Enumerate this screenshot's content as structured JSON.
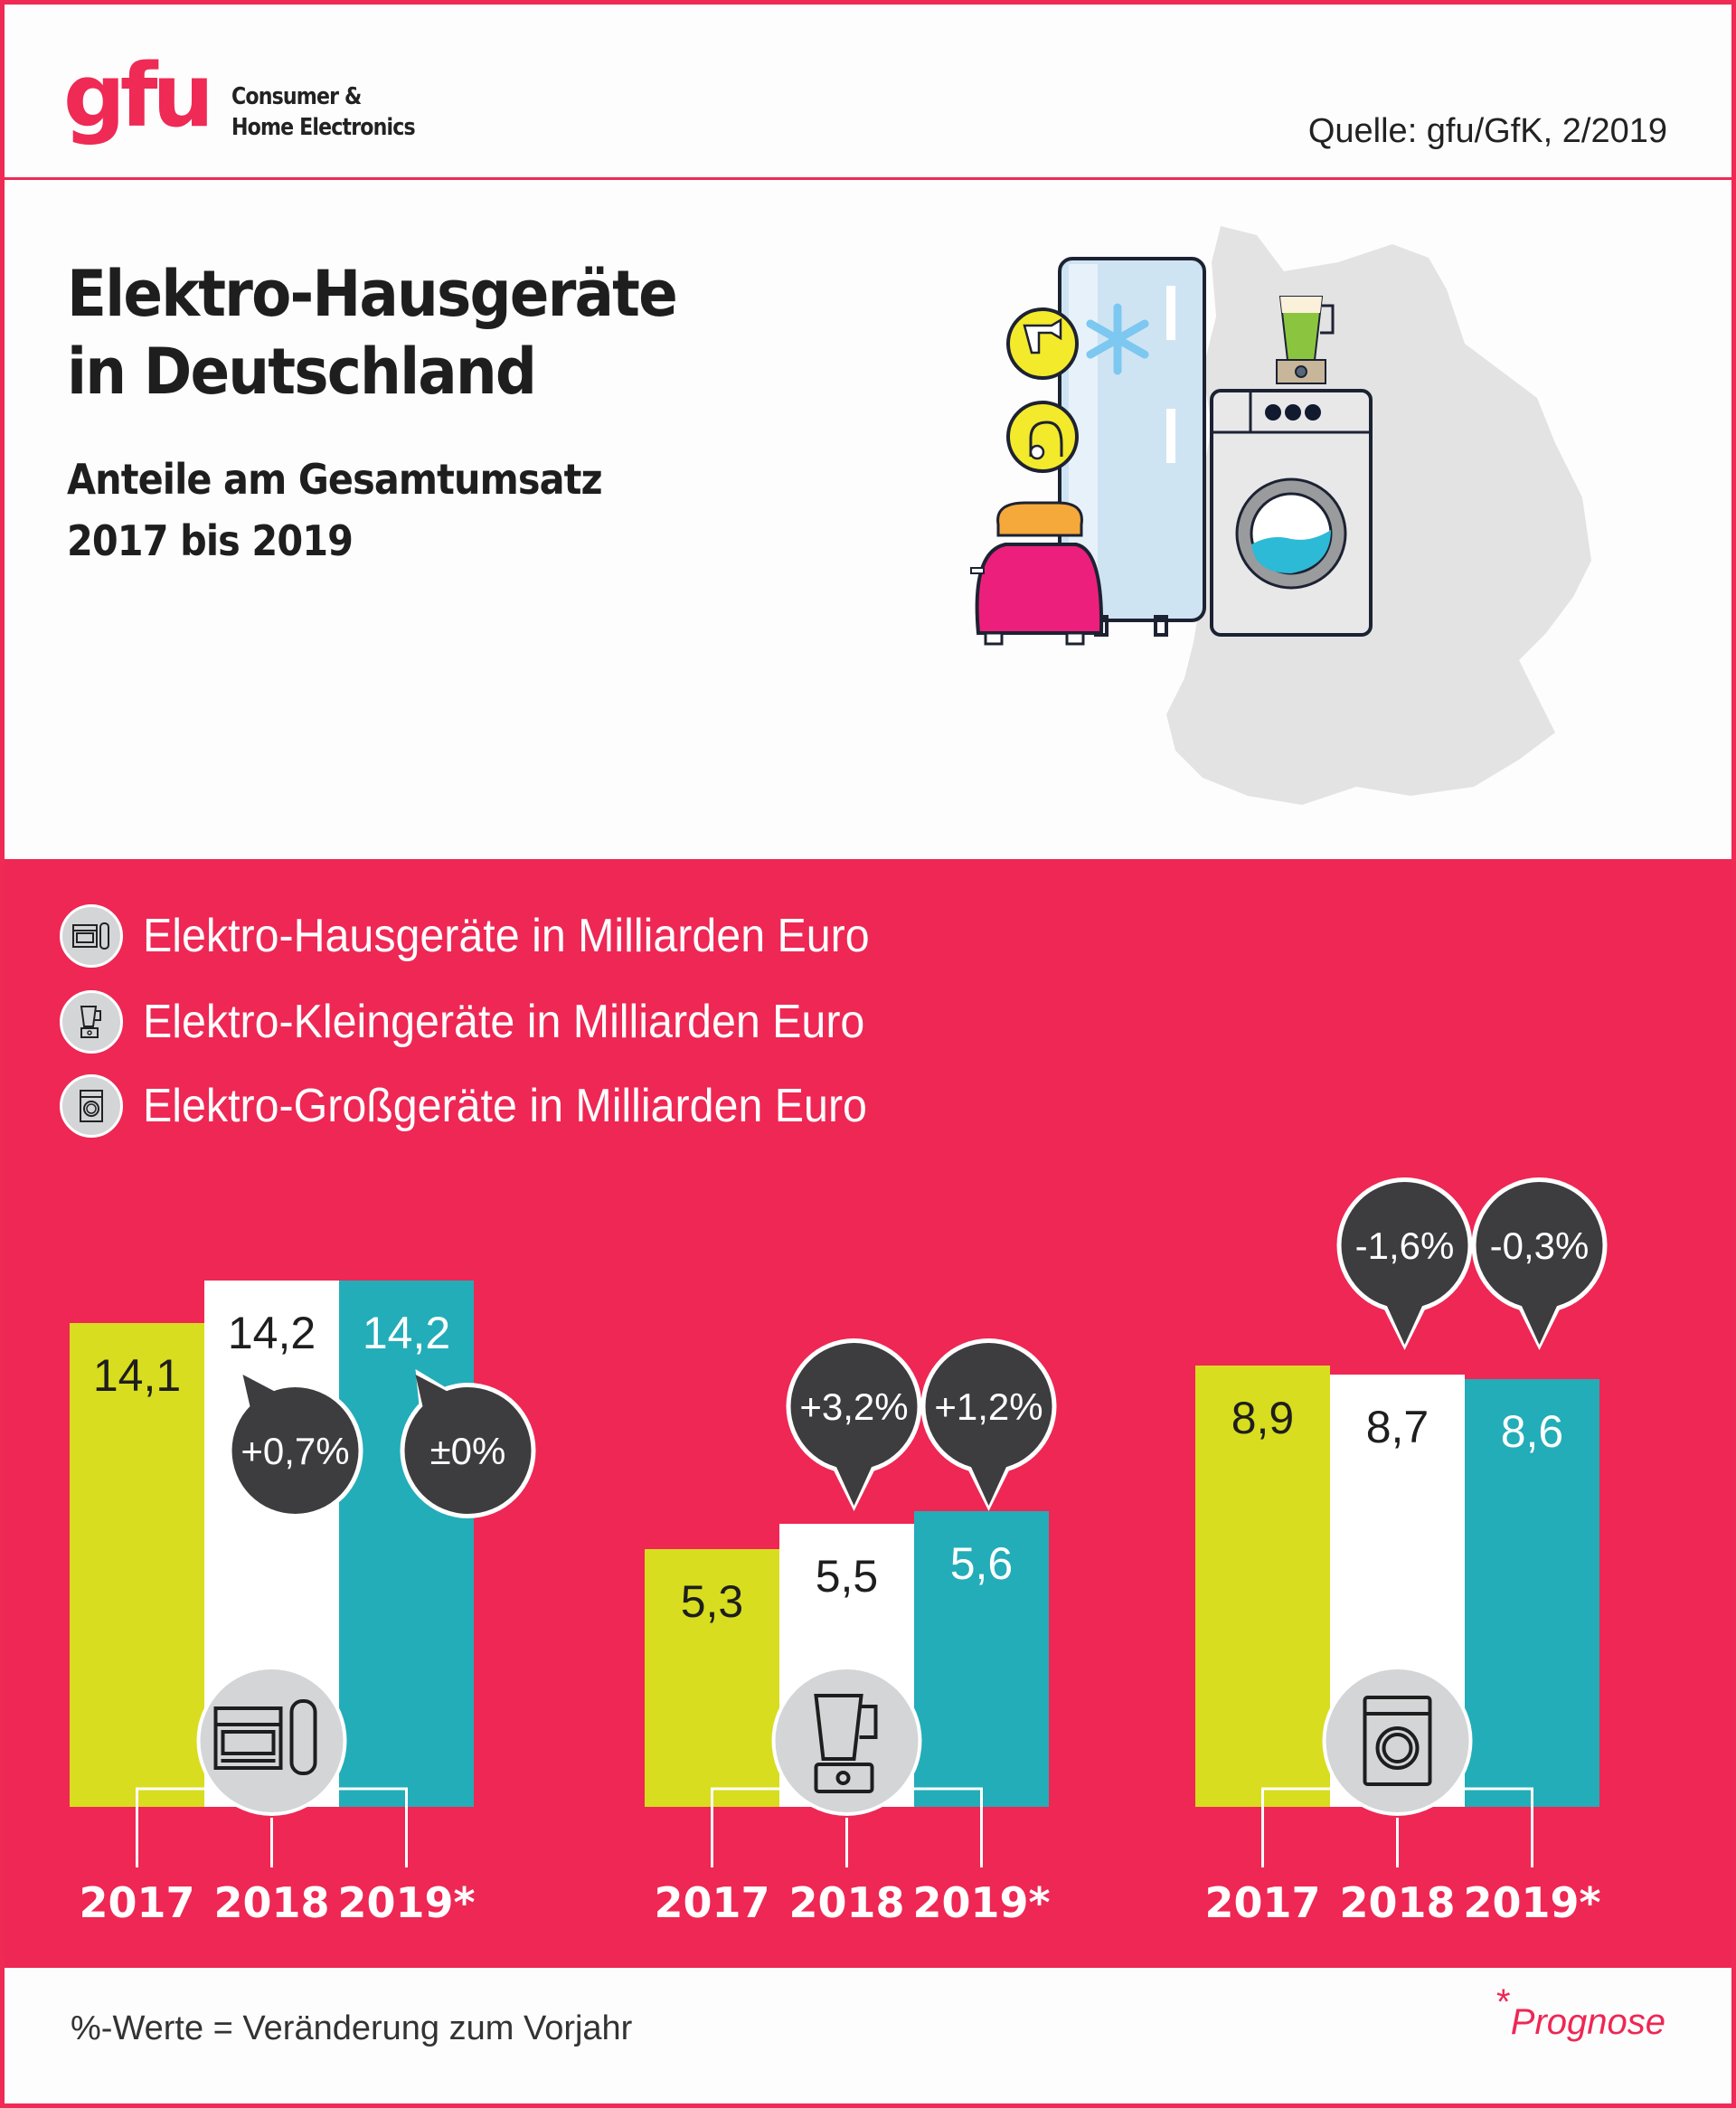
{
  "header": {
    "logo_text": "gfu",
    "logo_sub_line1": "Consumer &",
    "logo_sub_line2": "Home Electronics",
    "source": "Quelle: gfu/GfK, 2/2019"
  },
  "title": {
    "line1": "Elektro-Hausgeräte",
    "line2": "in Deutschland",
    "subtitle_line1": "Anteile am Gesamtumsatz",
    "subtitle_line2": "2017 bis 2019"
  },
  "illustration": {
    "items": [
      "refrigerator",
      "hair-dryer-badge",
      "vacuum-cleaner-badge",
      "toaster",
      "washing-machine",
      "blender",
      "germany-map"
    ]
  },
  "legend": [
    {
      "icon": "oven-shaver-icon",
      "label": "Elektro-Hausgeräte in Milliarden Euro"
    },
    {
      "icon": "blender-icon",
      "label": "Elektro-Kleingeräte in Milliarden Euro"
    },
    {
      "icon": "washing-machine-icon",
      "label": "Elektro-Großgeräte in Milliarden Euro"
    }
  ],
  "colors": {
    "background_pink": "#ee2754",
    "bar_2017": "#d8dd1f",
    "bar_2018": "#ffffff",
    "bar_2019": "#23adb8",
    "bubble": "#3d3d3f",
    "icon_circle": "#d4d5d7"
  },
  "chart_data": {
    "type": "bar",
    "title": "Elektro-Hausgeräte in Deutschland – Anteile am Gesamtumsatz 2017 bis 2019",
    "unit": "Milliarden Euro",
    "categories": [
      "2017",
      "2018",
      "2019*"
    ],
    "groups": [
      {
        "name": "Elektro-Hausgeräte",
        "icon": "oven-shaver-icon",
        "values": [
          14.1,
          14.2,
          14.2
        ],
        "value_labels": [
          "14,1",
          "14,2",
          "14,2"
        ],
        "changes": [
          null,
          "+0,7%",
          "±0%"
        ]
      },
      {
        "name": "Elektro-Kleingeräte",
        "icon": "blender-icon",
        "values": [
          5.3,
          5.5,
          5.6
        ],
        "value_labels": [
          "5,3",
          "5,5",
          "5,6"
        ],
        "changes": [
          null,
          "+3,2%",
          "+1,2%"
        ]
      },
      {
        "name": "Elektro-Großgeräte",
        "icon": "washing-machine-icon",
        "values": [
          8.9,
          8.7,
          8.6
        ],
        "value_labels": [
          "8,9",
          "8,7",
          "8,6"
        ],
        "changes": [
          null,
          "-1,6%",
          "-0,3%"
        ]
      }
    ],
    "xlabel": "",
    "ylabel": "",
    "grid": false
  },
  "footer": {
    "note": "%-Werte = Veränderung zum Vorjahr",
    "forecast_asterisk": "*",
    "forecast_label": "Prognose"
  }
}
